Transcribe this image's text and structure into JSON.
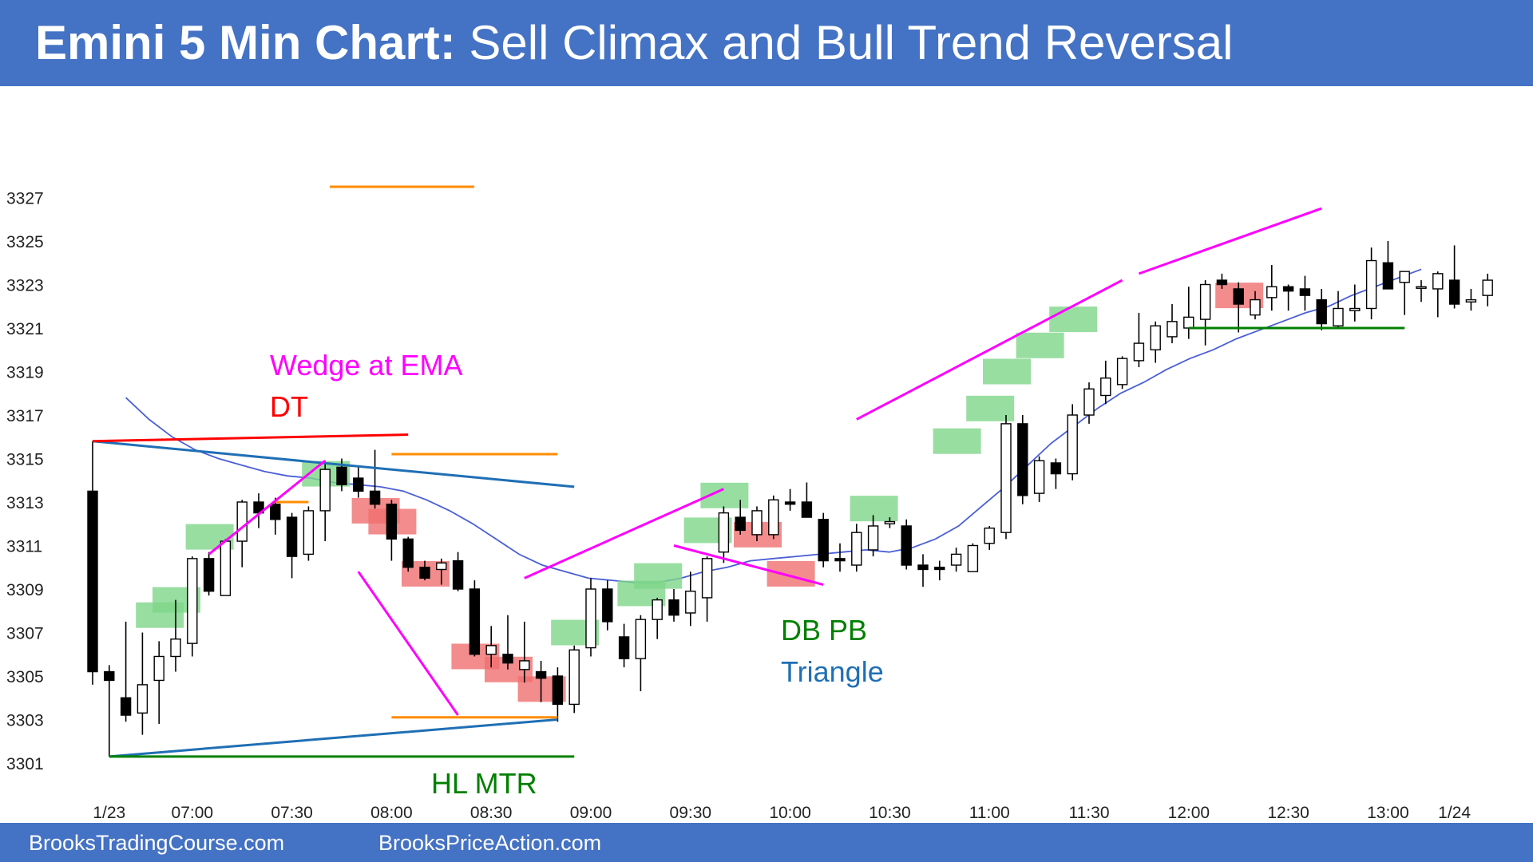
{
  "header": {
    "title_bold": "Emini 5 Min Chart:",
    "title_rest": " Sell Climax and Bull Trend Reversal"
  },
  "footer": {
    "left": "BrooksTradingCourse.com",
    "right": "BrooksPriceAction.com"
  },
  "colors": {
    "banner": "#4472c4",
    "ema": "#4a5fd6",
    "wedge": "#ff00ff",
    "triangle": "#1f6fb5",
    "support": "#008000",
    "double_top": "#ff0000",
    "measured_move": "#ff8c00",
    "bull_highlight": "#7ed68a",
    "bear_highlight": "#f06f6f"
  },
  "chart_data": {
    "type": "candlestick",
    "title": "Emini 5 Min Chart: Sell Climax and Bull Trend Reversal",
    "y_ticks": [
      3301,
      3303,
      3305,
      3307,
      3309,
      3311,
      3313,
      3315,
      3317,
      3319,
      3321,
      3323,
      3325,
      3327
    ],
    "ylim": [
      3300,
      3330
    ],
    "x_ticks": [
      {
        "bar": 1,
        "label": "1/23"
      },
      {
        "bar": 6,
        "label": "07:00"
      },
      {
        "bar": 12,
        "label": "07:30"
      },
      {
        "bar": 18,
        "label": "08:00"
      },
      {
        "bar": 24,
        "label": "08:30"
      },
      {
        "bar": 30,
        "label": "09:00"
      },
      {
        "bar": 36,
        "label": "09:30"
      },
      {
        "bar": 42,
        "label": "10:00"
      },
      {
        "bar": 48,
        "label": "10:30"
      },
      {
        "bar": 54,
        "label": "11:00"
      },
      {
        "bar": 60,
        "label": "11:30"
      },
      {
        "bar": 66,
        "label": "12:00"
      },
      {
        "bar": 72,
        "label": "12:30"
      },
      {
        "bar": 78,
        "label": "13:00"
      },
      {
        "bar": 82,
        "label": "1/24"
      }
    ],
    "ohlc": [
      [
        3313.5,
        3315.8,
        3304.6,
        3305.2
      ],
      [
        3305.2,
        3305.5,
        3301.3,
        3304.8
      ],
      [
        3304.0,
        3307.5,
        3302.9,
        3303.2
      ],
      [
        3303.3,
        3307.0,
        3302.3,
        3304.6
      ],
      [
        3304.8,
        3306.6,
        3302.8,
        3305.9
      ],
      [
        3305.9,
        3308.5,
        3305.2,
        3306.7
      ],
      [
        3306.5,
        3310.5,
        3305.9,
        3310.4
      ],
      [
        3310.4,
        3310.7,
        3308.7,
        3308.9
      ],
      [
        3308.7,
        3311.3,
        3308.7,
        3311.2
      ],
      [
        3311.2,
        3313.1,
        3310.0,
        3313.0
      ],
      [
        3313.0,
        3313.4,
        3311.8,
        3312.5
      ],
      [
        3312.9,
        3313.2,
        3311.5,
        3312.2
      ],
      [
        3312.3,
        3312.5,
        3309.5,
        3310.5
      ],
      [
        3310.6,
        3312.8,
        3310.3,
        3312.6
      ],
      [
        3312.6,
        3314.9,
        3311.2,
        3314.5
      ],
      [
        3314.6,
        3315.0,
        3313.5,
        3313.8
      ],
      [
        3314.1,
        3314.6,
        3313.2,
        3313.5
      ],
      [
        3313.5,
        3315.4,
        3312.7,
        3312.9
      ],
      [
        3312.9,
        3313.1,
        3310.3,
        3311.3
      ],
      [
        3311.3,
        3311.4,
        3309.8,
        3310.0
      ],
      [
        3310.0,
        3310.3,
        3309.4,
        3309.5
      ],
      [
        3309.9,
        3310.4,
        3309.2,
        3310.2
      ],
      [
        3310.3,
        3310.7,
        3308.9,
        3309.0
      ],
      [
        3309.0,
        3309.4,
        3305.9,
        3306.0
      ],
      [
        3306.0,
        3307.3,
        3305.4,
        3306.4
      ],
      [
        3306.0,
        3307.8,
        3305.3,
        3305.6
      ],
      [
        3305.3,
        3307.5,
        3304.7,
        3305.7
      ],
      [
        3305.2,
        3305.7,
        3303.8,
        3304.9
      ],
      [
        3305.0,
        3305.4,
        3302.9,
        3303.7
      ],
      [
        3303.7,
        3306.4,
        3303.3,
        3306.2
      ],
      [
        3306.3,
        3309.5,
        3305.9,
        3309.0
      ],
      [
        3309.0,
        3309.4,
        3307.1,
        3307.5
      ],
      [
        3306.8,
        3307.4,
        3305.4,
        3305.8
      ],
      [
        3305.8,
        3307.8,
        3304.3,
        3307.6
      ],
      [
        3307.6,
        3308.6,
        3306.7,
        3308.5
      ],
      [
        3308.5,
        3309.0,
        3307.5,
        3307.8
      ],
      [
        3307.9,
        3309.8,
        3307.3,
        3308.9
      ],
      [
        3308.6,
        3310.5,
        3307.5,
        3310.4
      ],
      [
        3310.7,
        3312.8,
        3310.2,
        3312.5
      ],
      [
        3312.3,
        3313.1,
        3311.5,
        3311.7
      ],
      [
        3311.5,
        3312.8,
        3311.2,
        3312.6
      ],
      [
        3311.5,
        3313.3,
        3311.3,
        3313.1
      ],
      [
        3313.0,
        3313.6,
        3312.6,
        3312.9
      ],
      [
        3313.0,
        3313.9,
        3312.3,
        3312.3
      ],
      [
        3312.2,
        3312.5,
        3310.0,
        3310.3
      ],
      [
        3310.4,
        3311.1,
        3309.8,
        3310.3
      ],
      [
        3310.1,
        3312.0,
        3309.8,
        3311.6
      ],
      [
        3310.8,
        3312.4,
        3310.5,
        3311.9
      ],
      [
        3312.0,
        3312.3,
        3311.8,
        3312.1
      ],
      [
        3311.9,
        3312.2,
        3309.9,
        3310.1
      ],
      [
        3310.1,
        3310.6,
        3309.1,
        3309.9
      ],
      [
        3310.0,
        3310.3,
        3309.4,
        3309.9
      ],
      [
        3310.1,
        3310.9,
        3309.8,
        3310.6
      ],
      [
        3309.8,
        3311.1,
        3309.8,
        3311.0
      ],
      [
        3311.1,
        3311.9,
        3310.8,
        3311.8
      ],
      [
        3311.6,
        3317.0,
        3311.3,
        3316.6
      ],
      [
        3316.6,
        3317.0,
        3312.9,
        3313.3
      ],
      [
        3313.4,
        3315.1,
        3313.0,
        3314.9
      ],
      [
        3314.8,
        3315.0,
        3313.6,
        3314.3
      ],
      [
        3314.3,
        3317.5,
        3314.0,
        3317.0
      ],
      [
        3317.0,
        3318.5,
        3316.6,
        3318.2
      ],
      [
        3317.9,
        3319.5,
        3317.5,
        3318.7
      ],
      [
        3318.4,
        3319.7,
        3318.2,
        3319.6
      ],
      [
        3319.5,
        3321.7,
        3319.2,
        3320.3
      ],
      [
        3320.0,
        3321.3,
        3319.4,
        3321.1
      ],
      [
        3320.6,
        3322.1,
        3320.3,
        3321.3
      ],
      [
        3321.0,
        3322.9,
        3320.5,
        3321.5
      ],
      [
        3321.4,
        3323.2,
        3320.2,
        3323.0
      ],
      [
        3323.2,
        3323.5,
        3322.8,
        3323.0
      ],
      [
        3322.8,
        3323.1,
        3320.8,
        3322.1
      ],
      [
        3321.6,
        3322.7,
        3321.4,
        3322.3
      ],
      [
        3322.4,
        3323.9,
        3321.8,
        3322.9
      ],
      [
        3322.9,
        3323.0,
        3321.8,
        3322.7
      ],
      [
        3322.8,
        3323.4,
        3321.8,
        3322.5
      ],
      [
        3322.3,
        3322.8,
        3320.9,
        3321.2
      ],
      [
        3321.1,
        3322.7,
        3321.0,
        3321.9
      ],
      [
        3321.8,
        3323.0,
        3321.3,
        3321.9
      ],
      [
        3321.9,
        3324.7,
        3321.4,
        3324.1
      ],
      [
        3324.0,
        3325.0,
        3322.9,
        3322.8
      ],
      [
        3323.1,
        3323.6,
        3321.6,
        3323.6
      ],
      [
        3322.9,
        3323.2,
        3322.2,
        3322.9
      ],
      [
        3322.8,
        3323.6,
        3321.5,
        3323.5
      ],
      [
        3323.2,
        3324.8,
        3321.9,
        3322.1
      ],
      [
        3322.2,
        3322.8,
        3321.8,
        3322.3
      ],
      [
        3322.5,
        3323.5,
        3322.0,
        3323.2
      ]
    ],
    "ema": [
      3317.8,
      3316.8,
      3316.0,
      3315.4,
      3315.0,
      3314.7,
      3314.4,
      3314.2,
      3314.1,
      3313.9,
      3313.8,
      3313.7,
      3313.5,
      3313.1,
      3312.6,
      3312.0,
      3311.3,
      3310.6,
      3310.1,
      3309.8,
      3309.5,
      3309.4,
      3309.3,
      3309.3,
      3309.5,
      3309.8,
      3310.0,
      3310.3,
      3310.4,
      3310.5,
      3310.6,
      3310.7,
      3310.8,
      3310.7,
      3310.9,
      3311.3,
      3311.9,
      3312.8,
      3313.7,
      3314.7,
      3315.7,
      3316.5,
      3317.3,
      3318.0,
      3318.5,
      3319.1,
      3319.6,
      3320.0,
      3320.5,
      3320.9,
      3321.3,
      3321.7,
      3322.0,
      3322.5,
      3322.9,
      3323.3,
      3323.7
    ],
    "annotations": [
      "Wedge at EMA",
      "DT",
      "DB PB",
      "Triangle",
      "HL MTR"
    ]
  }
}
